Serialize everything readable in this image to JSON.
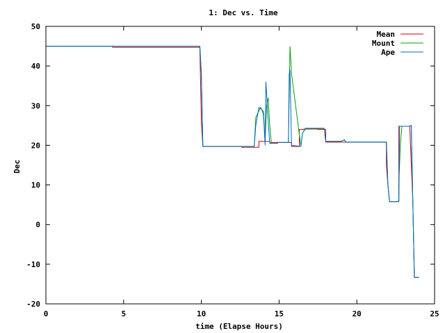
{
  "chart_data": {
    "type": "line",
    "title": "1: Dec vs. Time",
    "xlabel": "time (Elapse Hours)",
    "ylabel": "Dec",
    "xlim": [
      0,
      25
    ],
    "ylim": [
      -20,
      50
    ],
    "xticks": [
      "0",
      "5",
      "10",
      "15",
      "20",
      "25"
    ],
    "yticks": [
      "-20",
      "-10",
      "0",
      "10",
      "20",
      "30",
      "40",
      "50"
    ],
    "grid": false,
    "legend_position": "top-right",
    "series": [
      {
        "name": "Mean",
        "color": "#cc0000",
        "x": [
          0,
          4.3,
          4.3,
          9.9,
          10.0,
          10.1,
          12.6,
          12.6,
          13.7,
          13.7,
          14.4,
          14.4,
          14.9,
          14.9,
          15.8,
          15.8,
          16.3,
          16.3,
          16.6,
          16.6,
          17.5,
          17.5,
          18.0,
          18.0,
          21.9,
          21.9,
          22.0,
          22.1,
          22.7,
          22.7,
          23.4,
          23.4,
          23.6,
          23.7,
          24.0
        ],
        "y": [
          45,
          45,
          44.7,
          44.7,
          26,
          19.7,
          19.7,
          19.5,
          19.5,
          21,
          21,
          20.5,
          20.5,
          20.7,
          20.7,
          19.7,
          19.7,
          24,
          24,
          24.1,
          24.1,
          24.0,
          24.0,
          20.8,
          20.8,
          15,
          10,
          5.8,
          5.8,
          24.8,
          24.8,
          25,
          6,
          -13.3,
          -13.3
        ]
      },
      {
        "name": "Mount",
        "color": "#00a000",
        "x": [
          0,
          9.9,
          10.0,
          10.1,
          13.4,
          13.5,
          13.8,
          14.0,
          14.1,
          14.2,
          14.3,
          14.4,
          14.5,
          15.6,
          15.7,
          15.8,
          16.4,
          16.5,
          16.7,
          17.9,
          18.0,
          19.0,
          19.2,
          19.3,
          21.9,
          22.0,
          22.1,
          22.7,
          22.7,
          22.8,
          22.9,
          23.4,
          23.5,
          23.6,
          23.7,
          24.0
        ],
        "y": [
          45,
          45,
          38,
          19.7,
          19.7,
          27,
          29.5,
          28.5,
          21,
          30,
          32,
          25,
          20.7,
          20.7,
          45,
          38,
          19.7,
          23,
          24.2,
          24.2,
          21,
          21,
          21.4,
          20.8,
          20.8,
          10,
          5.8,
          5.8,
          10.5,
          20,
          24.8,
          24.8,
          25,
          6,
          -13.3,
          -13.3
        ]
      },
      {
        "name": "Ape",
        "color": "#0066cc",
        "x": [
          0,
          9.9,
          10.0,
          10.1,
          13.4,
          13.5,
          13.7,
          13.9,
          14.0,
          14.1,
          14.15,
          14.2,
          14.3,
          14.4,
          14.5,
          15.6,
          15.65,
          15.7,
          15.8,
          16.4,
          16.5,
          16.7,
          17.9,
          18.0,
          19.0,
          19.2,
          19.3,
          21.9,
          22.0,
          22.1,
          22.6,
          22.7,
          22.75,
          23.4,
          23.5,
          23.6,
          23.7,
          24.0
        ],
        "y": [
          45,
          45,
          38,
          19.7,
          19.7,
          25,
          29.5,
          29,
          27.5,
          20,
          36,
          33,
          26,
          20.5,
          20.7,
          20.7,
          38,
          39,
          20,
          19.7,
          23,
          24.3,
          24.3,
          21,
          21,
          21.4,
          20.8,
          20.8,
          10,
          5.8,
          5.8,
          6,
          24.8,
          24.8,
          25,
          6,
          -13.3,
          -13.3
        ]
      }
    ]
  }
}
